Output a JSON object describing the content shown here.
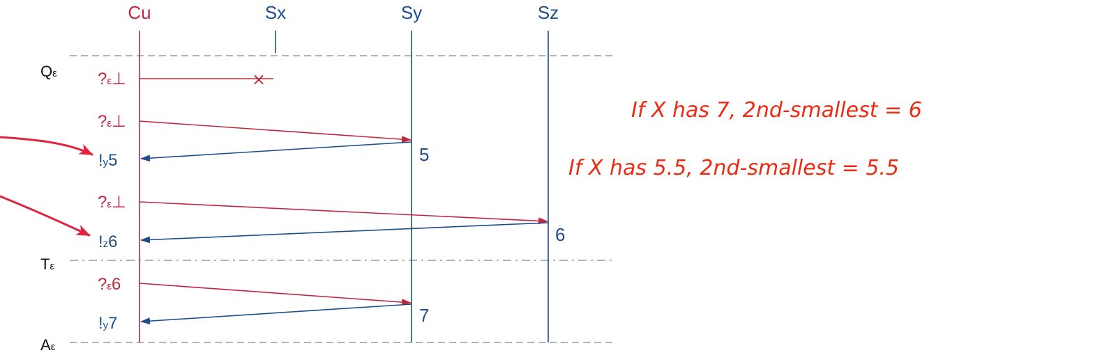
{
  "colors": {
    "request": "#c0263e",
    "reply": "#1f4e8c",
    "note": "#ee2b12",
    "annotation_arrow": "#e0233f",
    "divider": "#9a9a9a",
    "phase_text": "#111111"
  },
  "lanes": {
    "cu": "Cu",
    "sx": "Sx",
    "sy": "Sy",
    "sz": "Sz"
  },
  "phases": {
    "q": {
      "main": "Q",
      "sub": "ε"
    },
    "t": {
      "main": "T",
      "sub": "ε"
    },
    "a": {
      "main": "A",
      "sub": "ε"
    }
  },
  "messages": [
    {
      "main": "?",
      "sub": "ε",
      "tail": "⊥",
      "kind": "request",
      "target": "Sx",
      "lost_marker": "×"
    },
    {
      "main": "?",
      "sub": "ε",
      "tail": "⊥",
      "kind": "request",
      "target": "Sy"
    },
    {
      "main": "!",
      "sub": "y",
      "tail": "5",
      "kind": "reply",
      "source": "Sy"
    },
    {
      "main": "?",
      "sub": "ε",
      "tail": "⊥",
      "kind": "request",
      "target": "Sz"
    },
    {
      "main": "!",
      "sub": "z",
      "tail": "6",
      "kind": "reply",
      "source": "Sz"
    },
    {
      "main": "?",
      "sub": "ε",
      "tail": "6",
      "kind": "request",
      "target": "Sy"
    },
    {
      "main": "!",
      "sub": "y",
      "tail": "7",
      "kind": "reply",
      "source": "Sy"
    }
  ],
  "server_values": {
    "sy_first": "5",
    "sz_first": "6",
    "sy_second": "7"
  },
  "notes": {
    "line1": "If X has 7, 2nd-smallest = 6",
    "line2": "If X has 5.5, 2nd-smallest = 5.5"
  }
}
